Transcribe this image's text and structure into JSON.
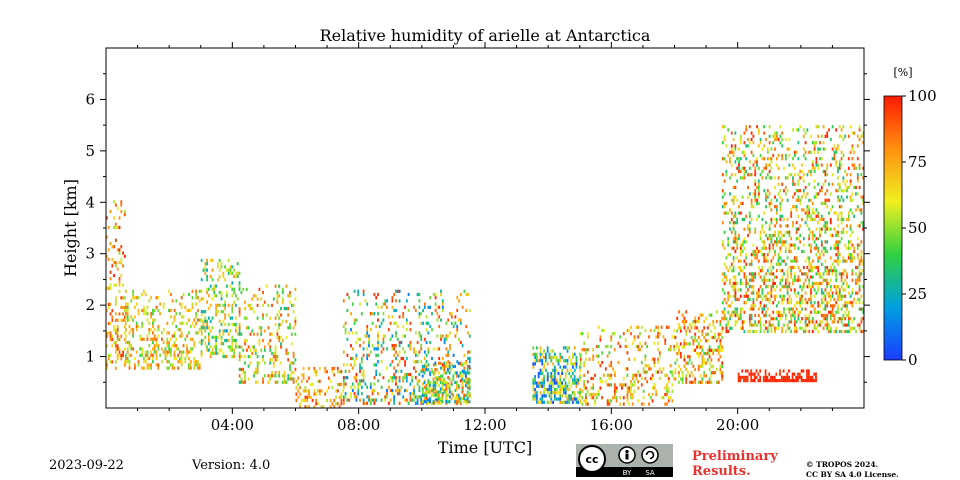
{
  "chart_data": {
    "type": "heatmap",
    "title": "Relative humidity of arielle at Antarctica",
    "xlabel": "Time [UTC]",
    "ylabel": "Height [km]",
    "xlim_hours": [
      0,
      24
    ],
    "ylim_km": [
      0,
      7
    ],
    "x_ticks": [
      {
        "hour": 4,
        "label": "04:00"
      },
      {
        "hour": 8,
        "label": "08:00"
      },
      {
        "hour": 12,
        "label": "12:00"
      },
      {
        "hour": 16,
        "label": "16:00"
      },
      {
        "hour": 20,
        "label": "20:00"
      }
    ],
    "y_ticks": [
      {
        "km": 1,
        "label": "1"
      },
      {
        "km": 2,
        "label": "2"
      },
      {
        "km": 3,
        "label": "3"
      },
      {
        "km": 4,
        "label": "4"
      },
      {
        "km": 5,
        "label": "5"
      },
      {
        "km": 6,
        "label": "6"
      }
    ],
    "colorbar": {
      "unit": "[%]",
      "range": [
        0,
        100
      ],
      "ticks": [
        {
          "value": 0,
          "label": "0"
        },
        {
          "value": 25,
          "label": "25"
        },
        {
          "value": 50,
          "label": "50"
        },
        {
          "value": 75,
          "label": "75"
        },
        {
          "value": 100,
          "label": "100"
        }
      ],
      "colors": [
        "#1a3cff",
        "#00a0e0",
        "#30d040",
        "#f0f020",
        "#ff9010",
        "#ff1a00"
      ]
    },
    "data_regions": [
      {
        "t0": 0.0,
        "t1": 0.6,
        "h0": 0.8,
        "h1": 4.1,
        "rh": [
          50,
          100
        ],
        "density": 0.35
      },
      {
        "t0": 0.6,
        "t1": 3.0,
        "h0": 0.8,
        "h1": 2.3,
        "rh": [
          40,
          90
        ],
        "density": 0.4
      },
      {
        "t0": 3.0,
        "t1": 4.2,
        "h0": 1.0,
        "h1": 2.9,
        "rh": [
          20,
          80
        ],
        "density": 0.45
      },
      {
        "t0": 4.2,
        "t1": 6.0,
        "h0": 0.5,
        "h1": 2.4,
        "rh": [
          30,
          95
        ],
        "density": 0.3
      },
      {
        "t0": 6.0,
        "t1": 7.5,
        "h0": 0.0,
        "h1": 0.8,
        "rh": [
          50,
          100
        ],
        "density": 0.35
      },
      {
        "t0": 7.5,
        "t1": 11.5,
        "h0": 0.1,
        "h1": 2.3,
        "rh": [
          10,
          100
        ],
        "density": 0.3
      },
      {
        "t0": 10.0,
        "t1": 11.5,
        "h0": 0.1,
        "h1": 0.9,
        "rh": [
          10,
          90
        ],
        "density": 0.7
      },
      {
        "t0": 13.5,
        "t1": 15.0,
        "h0": 0.1,
        "h1": 1.2,
        "rh": [
          0,
          80
        ],
        "density": 0.7
      },
      {
        "t0": 15.0,
        "t1": 18.0,
        "h0": 0.1,
        "h1": 1.6,
        "rh": [
          40,
          100
        ],
        "density": 0.3
      },
      {
        "t0": 18.0,
        "t1": 19.5,
        "h0": 0.5,
        "h1": 1.9,
        "rh": [
          40,
          100
        ],
        "density": 0.45
      },
      {
        "t0": 19.5,
        "t1": 24.0,
        "h0": 1.5,
        "h1": 5.5,
        "rh": [
          30,
          100
        ],
        "density": 0.42
      },
      {
        "t0": 20.0,
        "t1": 22.5,
        "h0": 0.55,
        "h1": 0.75,
        "rh": [
          95,
          100
        ],
        "density": 0.9
      }
    ]
  },
  "footer": {
    "date": "2023-09-22",
    "version": "Version: 4.0",
    "preliminary_line1": "Preliminary",
    "preliminary_line2": "Results.",
    "copyright_line1": "© TROPOS 2024.",
    "copyright_line2": "CC BY SA 4.0 License.",
    "badge_cc": "cc",
    "badge_by": "BY",
    "badge_sa": "SA"
  }
}
